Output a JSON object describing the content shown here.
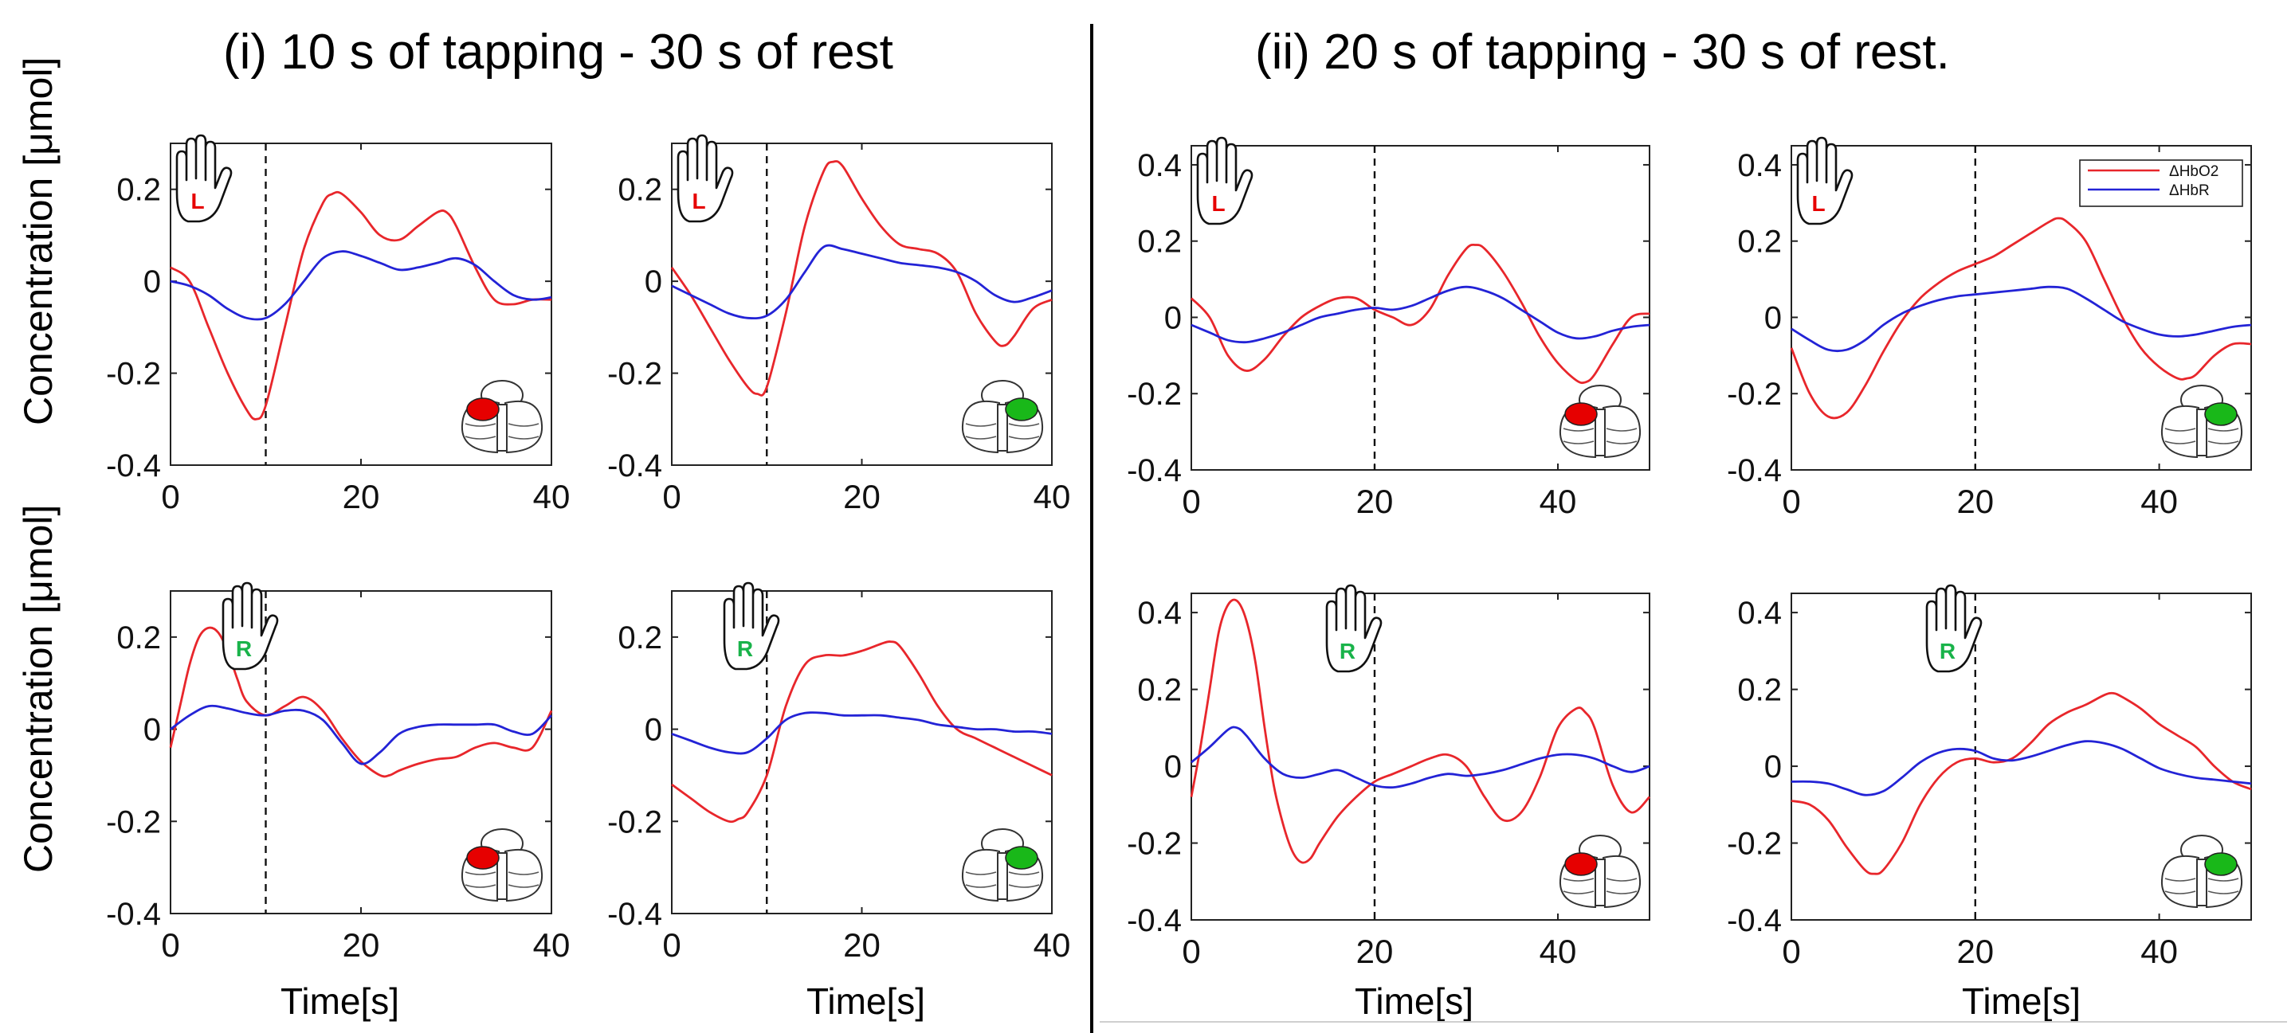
{
  "titles": {
    "left": "(i) 10 s of tapping - 30 s of rest",
    "right": "(ii) 20 s of tapping - 30 s of rest."
  },
  "ylabel": "Concentration [μmol]",
  "xlabel": "Time[s]",
  "chart_data": [
    {
      "type": "line",
      "id": "i-top-left",
      "hand": "L",
      "hand_color": "#e60000",
      "brain_color": "#e60000",
      "brain_side": "left",
      "xlim": [
        0,
        40
      ],
      "ylim": [
        -0.4,
        0.3
      ],
      "xticks": [
        "0",
        "20",
        "40"
      ],
      "yticks": [
        "-0.4",
        "-0.2",
        "0",
        "0.2"
      ],
      "stimulus_end": 10,
      "legend": false,
      "series": [
        {
          "color": "#e8262b",
          "x": [
            0,
            2,
            4,
            6,
            8,
            9,
            10,
            12,
            14,
            16,
            17,
            18,
            20,
            22,
            24,
            26,
            28,
            29,
            30,
            32,
            34,
            36,
            38,
            40
          ],
          "y": [
            0.03,
            0,
            -0.1,
            -0.2,
            -0.28,
            -0.3,
            -0.27,
            -0.1,
            0.07,
            0.17,
            0.19,
            0.19,
            0.15,
            0.1,
            0.09,
            0.12,
            0.15,
            0.15,
            0.12,
            0.03,
            -0.04,
            -0.05,
            -0.04,
            -0.04
          ]
        },
        {
          "color": "#2323d6",
          "x": [
            0,
            2,
            4,
            6,
            8,
            10,
            12,
            14,
            16,
            18,
            20,
            22,
            24,
            26,
            28,
            30,
            32,
            34,
            36,
            38,
            40
          ],
          "y": [
            0,
            -0.01,
            -0.03,
            -0.06,
            -0.08,
            -0.08,
            -0.05,
            0,
            0.05,
            0.065,
            0.055,
            0.04,
            0.025,
            0.03,
            0.04,
            0.05,
            0.035,
            0.0,
            -0.03,
            -0.04,
            -0.035
          ]
        }
      ]
    },
    {
      "type": "line",
      "id": "i-top-right",
      "hand": "L",
      "hand_color": "#e60000",
      "brain_color": "#19b819",
      "brain_side": "right",
      "xlim": [
        0,
        40
      ],
      "ylim": [
        -0.4,
        0.3
      ],
      "xticks": [
        "0",
        "20",
        "40"
      ],
      "yticks": [
        "-0.4",
        "-0.2",
        "0",
        "0.2"
      ],
      "stimulus_end": 10,
      "legend": false,
      "series": [
        {
          "color": "#e8262b",
          "x": [
            0,
            2,
            4,
            6,
            8,
            9,
            10,
            12,
            14,
            16,
            17,
            18,
            20,
            22,
            24,
            26,
            28,
            30,
            32,
            34,
            35,
            36,
            38,
            40
          ],
          "y": [
            0.03,
            -0.03,
            -0.1,
            -0.17,
            -0.23,
            -0.245,
            -0.23,
            -0.07,
            0.12,
            0.24,
            0.26,
            0.25,
            0.18,
            0.12,
            0.08,
            0.07,
            0.06,
            0.02,
            -0.07,
            -0.13,
            -0.14,
            -0.12,
            -0.06,
            -0.04
          ]
        },
        {
          "color": "#2323d6",
          "x": [
            0,
            2,
            4,
            6,
            8,
            10,
            12,
            14,
            16,
            18,
            20,
            22,
            24,
            26,
            28,
            30,
            32,
            34,
            36,
            38,
            40
          ],
          "y": [
            -0.01,
            -0.03,
            -0.05,
            -0.07,
            -0.08,
            -0.075,
            -0.04,
            0.02,
            0.075,
            0.07,
            0.06,
            0.05,
            0.04,
            0.035,
            0.03,
            0.02,
            0,
            -0.03,
            -0.045,
            -0.035,
            -0.02
          ]
        }
      ]
    },
    {
      "type": "line",
      "id": "i-bottom-left",
      "hand": "R",
      "hand_color": "#19b34a",
      "brain_color": "#e60000",
      "brain_side": "left",
      "xlim": [
        0,
        40
      ],
      "ylim": [
        -0.4,
        0.3
      ],
      "xticks": [
        "0",
        "20",
        "40"
      ],
      "yticks": [
        "-0.4",
        "-0.2",
        "0",
        "0.2"
      ],
      "stimulus_end": 10,
      "legend": false,
      "series": [
        {
          "color": "#e8262b",
          "x": [
            0,
            1,
            2,
            3,
            4,
            5,
            6,
            7,
            8,
            10,
            12,
            14,
            16,
            18,
            20,
            22,
            23,
            24,
            26,
            28,
            30,
            32,
            34,
            36,
            38,
            40
          ],
          "y": [
            -0.04,
            0.05,
            0.14,
            0.2,
            0.22,
            0.21,
            0.17,
            0.11,
            0.06,
            0.03,
            0.05,
            0.07,
            0.04,
            -0.02,
            -0.07,
            -0.1,
            -0.1,
            -0.09,
            -0.075,
            -0.065,
            -0.06,
            -0.04,
            -0.03,
            -0.04,
            -0.04,
            0.04
          ]
        },
        {
          "color": "#2323d6",
          "x": [
            0,
            2,
            4,
            6,
            8,
            10,
            12,
            14,
            16,
            18,
            20,
            22,
            24,
            26,
            28,
            30,
            32,
            34,
            36,
            38,
            40
          ],
          "y": [
            0,
            0.03,
            0.05,
            0.045,
            0.035,
            0.03,
            0.04,
            0.04,
            0.02,
            -0.03,
            -0.075,
            -0.05,
            -0.01,
            0.005,
            0.01,
            0.01,
            0.01,
            0.01,
            -0.005,
            -0.01,
            0.03
          ]
        }
      ]
    },
    {
      "type": "line",
      "id": "i-bottom-right",
      "hand": "R",
      "hand_color": "#19b34a",
      "brain_color": "#19b819",
      "brain_side": "right",
      "xlim": [
        0,
        40
      ],
      "ylim": [
        -0.4,
        0.3
      ],
      "xticks": [
        "0",
        "20",
        "40"
      ],
      "yticks": [
        "-0.4",
        "-0.2",
        "0",
        "0.2"
      ],
      "stimulus_end": 10,
      "legend": false,
      "series": [
        {
          "color": "#e8262b",
          "x": [
            0,
            2,
            4,
            6,
            7,
            8,
            10,
            12,
            14,
            16,
            18,
            20,
            22,
            23,
            24,
            26,
            28,
            30,
            32,
            34,
            36,
            38,
            40
          ],
          "y": [
            -0.12,
            -0.15,
            -0.18,
            -0.2,
            -0.195,
            -0.18,
            -0.1,
            0.05,
            0.14,
            0.16,
            0.16,
            0.17,
            0.185,
            0.19,
            0.18,
            0.12,
            0.05,
            0,
            -0.02,
            -0.04,
            -0.06,
            -0.08,
            -0.1
          ]
        },
        {
          "color": "#2323d6",
          "x": [
            0,
            2,
            4,
            6,
            8,
            10,
            12,
            14,
            16,
            18,
            20,
            22,
            24,
            26,
            28,
            30,
            32,
            34,
            36,
            38,
            40
          ],
          "y": [
            -0.01,
            -0.025,
            -0.04,
            -0.05,
            -0.05,
            -0.02,
            0.02,
            0.035,
            0.035,
            0.03,
            0.03,
            0.03,
            0.025,
            0.02,
            0.01,
            0.005,
            0,
            0,
            -0.005,
            -0.005,
            -0.01
          ]
        }
      ]
    },
    {
      "type": "line",
      "id": "ii-top-left",
      "hand": "L",
      "hand_color": "#e60000",
      "brain_color": "#e60000",
      "brain_side": "left",
      "xlim": [
        0,
        50
      ],
      "ylim": [
        -0.4,
        0.45
      ],
      "xticks": [
        "0",
        "20",
        "40"
      ],
      "yticks": [
        "-0.4",
        "-0.2",
        "0",
        "0.2",
        "0.4"
      ],
      "stimulus_end": 20,
      "legend": false,
      "series": [
        {
          "color": "#e8262b",
          "x": [
            0,
            2,
            4,
            6,
            8,
            10,
            12,
            14,
            16,
            18,
            20,
            22,
            24,
            26,
            28,
            30,
            31,
            32,
            34,
            36,
            38,
            40,
            42,
            43,
            44,
            46,
            48,
            50
          ],
          "y": [
            0.05,
            0,
            -0.1,
            -0.14,
            -0.11,
            -0.05,
            0,
            0.03,
            0.05,
            0.05,
            0.02,
            0,
            -0.02,
            0.02,
            0.11,
            0.18,
            0.19,
            0.18,
            0.12,
            0.04,
            -0.05,
            -0.12,
            -0.165,
            -0.17,
            -0.15,
            -0.07,
            0,
            0.01
          ]
        },
        {
          "color": "#2323d6",
          "x": [
            0,
            2,
            4,
            6,
            8,
            10,
            12,
            14,
            16,
            18,
            20,
            22,
            24,
            26,
            28,
            30,
            32,
            34,
            36,
            38,
            40,
            42,
            44,
            46,
            48,
            50
          ],
          "y": [
            -0.02,
            -0.04,
            -0.06,
            -0.065,
            -0.055,
            -0.04,
            -0.02,
            0,
            0.01,
            0.02,
            0.025,
            0.02,
            0.03,
            0.05,
            0.07,
            0.08,
            0.07,
            0.05,
            0.02,
            -0.01,
            -0.04,
            -0.055,
            -0.05,
            -0.035,
            -0.025,
            -0.02
          ]
        }
      ]
    },
    {
      "type": "line",
      "id": "ii-top-right",
      "hand": "L",
      "hand_color": "#e60000",
      "brain_color": "#19b819",
      "brain_side": "right",
      "xlim": [
        0,
        50
      ],
      "ylim": [
        -0.4,
        0.45
      ],
      "xticks": [
        "0",
        "20",
        "40"
      ],
      "yticks": [
        "-0.4",
        "-0.2",
        "0",
        "0.2",
        "0.4"
      ],
      "stimulus_end": 20,
      "legend": true,
      "legend_entries": [
        "ΔHbO2",
        "ΔHbR"
      ],
      "series": [
        {
          "color": "#e8262b",
          "x": [
            0,
            2,
            4,
            6,
            8,
            10,
            12,
            14,
            16,
            18,
            20,
            22,
            24,
            26,
            28,
            29,
            30,
            32,
            34,
            36,
            38,
            40,
            42,
            43,
            44,
            46,
            48,
            50
          ],
          "y": [
            -0.08,
            -0.2,
            -0.26,
            -0.25,
            -0.18,
            -0.09,
            -0.01,
            0.05,
            0.09,
            0.12,
            0.14,
            0.16,
            0.19,
            0.22,
            0.25,
            0.26,
            0.25,
            0.2,
            0.1,
            0,
            -0.08,
            -0.13,
            -0.16,
            -0.16,
            -0.15,
            -0.1,
            -0.07,
            -0.07
          ]
        },
        {
          "color": "#2323d6",
          "x": [
            0,
            2,
            4,
            6,
            8,
            10,
            12,
            14,
            16,
            18,
            20,
            22,
            24,
            26,
            28,
            30,
            32,
            34,
            36,
            38,
            40,
            42,
            44,
            46,
            48,
            50
          ],
          "y": [
            -0.03,
            -0.06,
            -0.085,
            -0.085,
            -0.06,
            -0.02,
            0.01,
            0.03,
            0.045,
            0.055,
            0.06,
            0.065,
            0.07,
            0.075,
            0.08,
            0.075,
            0.05,
            0.02,
            -0.01,
            -0.03,
            -0.045,
            -0.05,
            -0.045,
            -0.035,
            -0.025,
            -0.02
          ]
        }
      ]
    },
    {
      "type": "line",
      "id": "ii-bottom-left",
      "hand": "R",
      "hand_color": "#19b34a",
      "brain_color": "#e60000",
      "brain_side": "left",
      "xlim": [
        0,
        50
      ],
      "ylim": [
        -0.4,
        0.45
      ],
      "xticks": [
        "0",
        "20",
        "40"
      ],
      "yticks": [
        "-0.4",
        "-0.2",
        "0",
        "0.2",
        "0.4"
      ],
      "stimulus_end": 20,
      "legend": false,
      "series": [
        {
          "color": "#e8262b",
          "x": [
            0,
            1,
            2,
            3,
            4,
            5,
            6,
            7,
            8,
            9,
            10,
            11,
            12,
            13,
            14,
            16,
            18,
            20,
            22,
            24,
            26,
            28,
            30,
            32,
            34,
            36,
            38,
            40,
            42,
            43,
            44,
            46,
            48,
            50
          ],
          "y": [
            -0.08,
            0.05,
            0.2,
            0.35,
            0.42,
            0.43,
            0.38,
            0.27,
            0.1,
            -0.05,
            -0.15,
            -0.22,
            -0.25,
            -0.24,
            -0.2,
            -0.13,
            -0.08,
            -0.04,
            -0.02,
            0,
            0.02,
            0.03,
            0,
            -0.08,
            -0.14,
            -0.12,
            -0.03,
            0.1,
            0.15,
            0.14,
            0.1,
            -0.05,
            -0.12,
            -0.08
          ]
        },
        {
          "color": "#2323d6",
          "x": [
            0,
            2,
            4,
            5,
            6,
            8,
            10,
            12,
            14,
            16,
            18,
            20,
            22,
            24,
            26,
            28,
            30,
            32,
            34,
            36,
            38,
            40,
            42,
            44,
            46,
            48,
            50
          ],
          "y": [
            0.01,
            0.05,
            0.095,
            0.1,
            0.08,
            0.02,
            -0.02,
            -0.03,
            -0.02,
            -0.01,
            -0.03,
            -0.05,
            -0.055,
            -0.045,
            -0.03,
            -0.02,
            -0.025,
            -0.02,
            -0.01,
            0.005,
            0.02,
            0.03,
            0.03,
            0.02,
            0,
            -0.015,
            0
          ]
        }
      ]
    },
    {
      "type": "line",
      "id": "ii-bottom-right",
      "hand": "R",
      "hand_color": "#19b34a",
      "brain_color": "#19b819",
      "brain_side": "right",
      "xlim": [
        0,
        50
      ],
      "ylim": [
        -0.4,
        0.45
      ],
      "xticks": [
        "0",
        "20",
        "40"
      ],
      "yticks": [
        "-0.4",
        "-0.2",
        "0",
        "0.2",
        "0.4"
      ],
      "stimulus_end": 20,
      "legend": false,
      "series": [
        {
          "color": "#e8262b",
          "x": [
            0,
            2,
            4,
            6,
            8,
            9,
            10,
            12,
            14,
            16,
            18,
            20,
            22,
            24,
            26,
            28,
            30,
            32,
            34,
            35,
            36,
            38,
            40,
            42,
            44,
            46,
            48,
            50
          ],
          "y": [
            -0.09,
            -0.1,
            -0.14,
            -0.21,
            -0.27,
            -0.28,
            -0.27,
            -0.2,
            -0.1,
            -0.03,
            0.01,
            0.02,
            0.01,
            0.02,
            0.06,
            0.11,
            0.14,
            0.16,
            0.185,
            0.19,
            0.18,
            0.15,
            0.11,
            0.08,
            0.05,
            0,
            -0.04,
            -0.06
          ]
        },
        {
          "color": "#2323d6",
          "x": [
            0,
            2,
            4,
            6,
            8,
            10,
            12,
            14,
            16,
            18,
            20,
            22,
            24,
            26,
            28,
            30,
            32,
            34,
            36,
            38,
            40,
            42,
            44,
            46,
            48,
            50
          ],
          "y": [
            -0.04,
            -0.04,
            -0.045,
            -0.06,
            -0.075,
            -0.065,
            -0.03,
            0.01,
            0.035,
            0.045,
            0.04,
            0.02,
            0.015,
            0.025,
            0.04,
            0.055,
            0.065,
            0.06,
            0.045,
            0.02,
            -0.005,
            -0.02,
            -0.03,
            -0.035,
            -0.04,
            -0.045
          ]
        }
      ]
    }
  ]
}
